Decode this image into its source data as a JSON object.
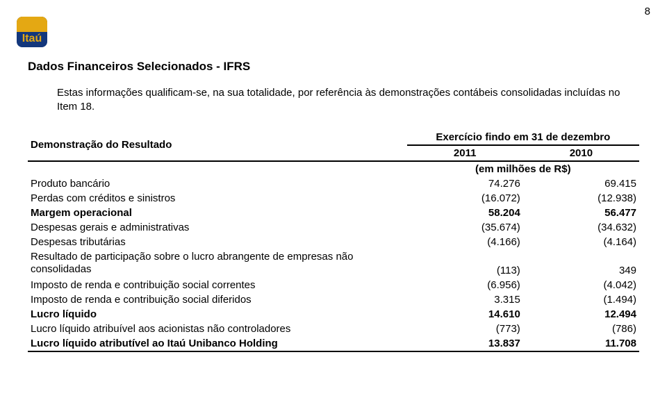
{
  "page_number": "8",
  "logo": {
    "name": "logo-itau",
    "text": "Itaú",
    "top_color": "#e4a813",
    "bottom_color": "#13377c"
  },
  "title": "Dados Financeiros Selecionados - IFRS",
  "intro": "Estas informações qualificam-se, na sua totalidade, por referência às demonstrações contábeis consolidadas incluídas no Item 18.",
  "table": {
    "caption": "Demonstração do Resultado",
    "header_top": "Exercício findo em 31 de dezembro",
    "year1": "2011",
    "year2": "2010",
    "units": "(em milhões de R$)",
    "rows": [
      {
        "label": "Produto bancário",
        "y1": "74.276",
        "y2": "69.415",
        "bold": false
      },
      {
        "label": "Perdas com créditos e sinistros",
        "y1": "(16.072)",
        "y2": "(12.938)",
        "bold": false
      },
      {
        "label": "Margem operacional",
        "y1": "58.204",
        "y2": "56.477",
        "bold": true
      },
      {
        "label": "Despesas gerais e administrativas",
        "y1": "(35.674)",
        "y2": "(34.632)",
        "bold": false
      },
      {
        "label": "Despesas tributárias",
        "y1": "(4.166)",
        "y2": "(4.164)",
        "bold": false
      },
      {
        "label": "Resultado de participação sobre o lucro abrangente de empresas não consolidadas",
        "y1": "(113)",
        "y2": "349",
        "bold": false,
        "multiline": true
      },
      {
        "label": "Imposto de renda e contribuição social correntes",
        "y1": "(6.956)",
        "y2": "(4.042)",
        "bold": false
      },
      {
        "label": "Imposto de renda e contribuição social diferidos",
        "y1": "3.315",
        "y2": "(1.494)",
        "bold": false
      },
      {
        "label": "Lucro líquido",
        "y1": "14.610",
        "y2": "12.494",
        "bold": true
      },
      {
        "label": "Lucro líquido atribuível aos acionistas não controladores",
        "y1": "(773)",
        "y2": "(786)",
        "bold": false
      },
      {
        "label": "Lucro líquido atributível ao Itaú Unibanco Holding",
        "y1": "13.837",
        "y2": "11.708",
        "bold": true
      }
    ]
  }
}
